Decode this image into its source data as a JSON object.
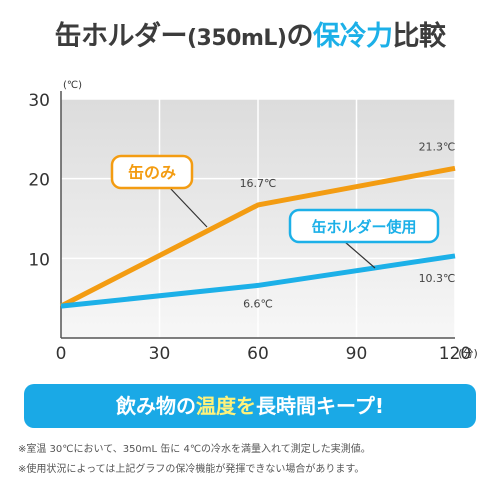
{
  "title": {
    "part1": "缶ホルダー",
    "part2": "(350mL)",
    "part3": "の",
    "part4": "保冷力",
    "part5": "比較"
  },
  "chart_data": {
    "type": "line",
    "x": [
      0,
      60,
      120
    ],
    "xlim": [
      0,
      120
    ],
    "ylim": [
      0,
      30
    ],
    "x_ticks": [
      "0",
      "30",
      "60",
      "90",
      "120"
    ],
    "y_ticks": [
      "10",
      "20",
      "30"
    ],
    "x_unit": "(分)",
    "y_unit": "(℃)",
    "grid": true,
    "series": [
      {
        "name": "缶のみ",
        "color": "#f39c12",
        "values": [
          4,
          16.7,
          21.3
        ],
        "point_labels": [
          "",
          "16.7℃",
          "21.3℃"
        ]
      },
      {
        "name": "缶ホルダー使用",
        "color": "#1cb0e8",
        "values": [
          4,
          6.6,
          10.3
        ],
        "point_labels": [
          "",
          "6.6℃",
          "10.3℃"
        ]
      }
    ]
  },
  "banner": {
    "part1": "飲み物の",
    "part2": "温度を",
    "part3": "長時間キープ!"
  },
  "notes": [
    "※室温 30℃において、350mL 缶に 4℃の冷水を満量入れて測定した実測値。",
    "※使用状況によっては上記グラフの保冷機能が発揮できない場合があります。"
  ]
}
